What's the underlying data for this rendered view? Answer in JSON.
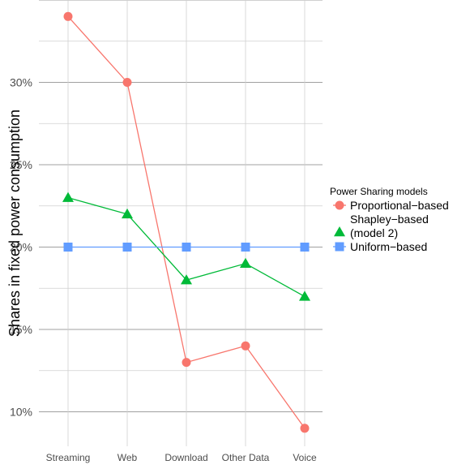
{
  "chart_data": {
    "type": "line",
    "title": "",
    "xlabel": "",
    "ylabel": "Shares in fixed power consumption",
    "categories": [
      "Streaming",
      "Web",
      "Download",
      "Other Data",
      "Voice"
    ],
    "ylim": [
      8,
      35
    ],
    "yticks": [
      10,
      15,
      20,
      25,
      30
    ],
    "ytick_labels": [
      "10%",
      "15%",
      "20%",
      "25%",
      "30%"
    ],
    "grid": true,
    "legend": {
      "title": "Power Sharing models",
      "position": "right"
    },
    "series": [
      {
        "name": "Proportional−based",
        "legend_lines": [
          "Proportional−based"
        ],
        "color": "#F8766D",
        "marker": "circle",
        "values": [
          34,
          30,
          13,
          14,
          9
        ]
      },
      {
        "name": "Shapley−based (model 2)",
        "legend_lines": [
          "Shapley−based",
          "(model 2)"
        ],
        "color": "#00BA38",
        "marker": "triangle",
        "values": [
          23,
          22,
          18,
          19,
          17
        ]
      },
      {
        "name": "Uniform−based",
        "legend_lines": [
          "Uniform−based"
        ],
        "color": "#619CFF",
        "marker": "square",
        "values": [
          20,
          20,
          20,
          20,
          20
        ]
      }
    ]
  }
}
